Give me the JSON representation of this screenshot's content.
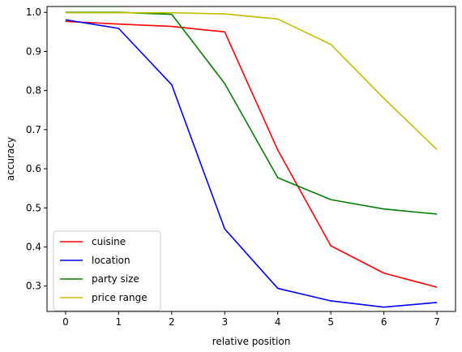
{
  "chart_data": {
    "type": "line",
    "title": "",
    "xlabel": "relative position",
    "ylabel": "accuracy",
    "x": [
      0,
      1,
      2,
      3,
      4,
      5,
      6,
      7
    ],
    "xlim": [
      -0.35,
      7.35
    ],
    "ylim": [
      0.235,
      1.015
    ],
    "xticks": [
      "0",
      "1",
      "2",
      "3",
      "4",
      "5",
      "6",
      "7"
    ],
    "yticks": [
      "0.3",
      "0.4",
      "0.5",
      "0.6",
      "0.7",
      "0.8",
      "0.9",
      "1.0"
    ],
    "grid": false,
    "legend_position": "lower-left",
    "series": [
      {
        "name": "cuisine",
        "color": "#ff0000",
        "values": [
          0.977,
          0.97,
          0.964,
          0.95,
          0.648,
          0.403,
          0.333,
          0.297
        ]
      },
      {
        "name": "location",
        "color": "#0000ff",
        "values": [
          0.981,
          0.959,
          0.815,
          0.446,
          0.294,
          0.262,
          0.246,
          0.258
        ]
      },
      {
        "name": "party size",
        "color": "#008000",
        "values": [
          1.0,
          1.0,
          0.995,
          0.818,
          0.577,
          0.521,
          0.497,
          0.484
        ]
      },
      {
        "name": "price range",
        "color": "#bfbf00",
        "values": [
          0.999,
          0.999,
          0.999,
          0.996,
          0.983,
          0.918,
          0.78,
          0.649
        ]
      }
    ]
  }
}
